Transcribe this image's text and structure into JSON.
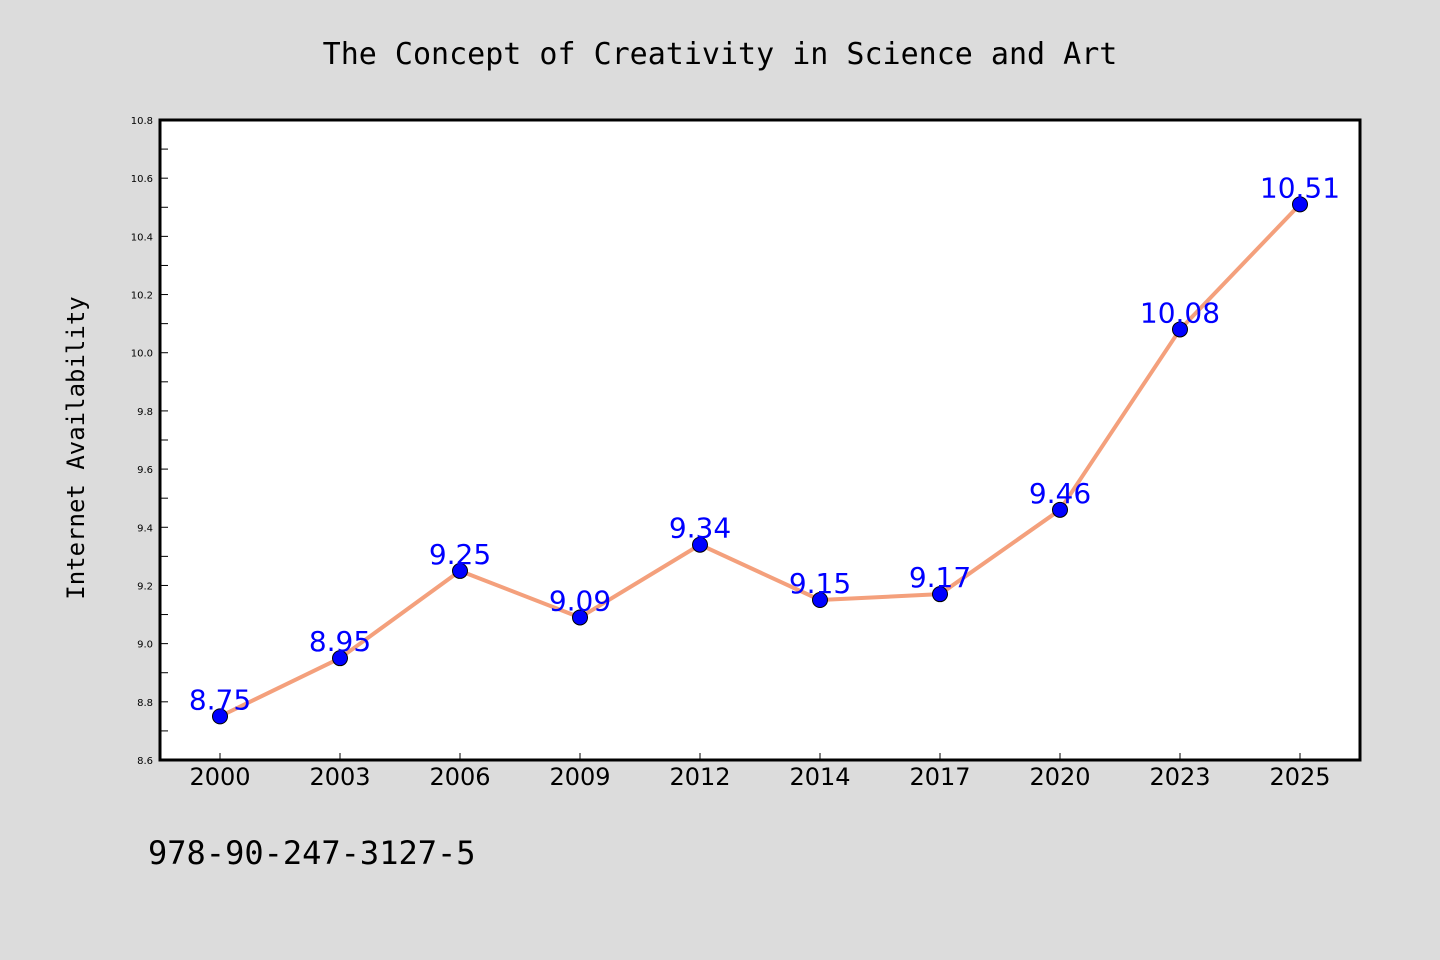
{
  "chart_data": {
    "type": "line",
    "title": "The Concept of Creativity in Science and Art",
    "ylabel": "Internet Availability",
    "xlabel": "",
    "categories": [
      "2000",
      "2003",
      "2006",
      "2009",
      "2012",
      "2014",
      "2017",
      "2020",
      "2023",
      "2025"
    ],
    "series": [
      {
        "values": [
          8.75,
          8.95,
          9.25,
          9.09,
          9.34,
          9.15,
          9.17,
          9.46,
          10.08,
          10.51
        ],
        "labels": [
          "8.75",
          "8.95",
          "9.25",
          "9.09",
          "9.34",
          "9.15",
          "9.17",
          "9.46",
          "10.08",
          "10.51"
        ]
      }
    ],
    "ylim": [
      8.6,
      10.8
    ],
    "yticks": [
      "8.6",
      "8.8",
      "9.0",
      "9.2",
      "9.4",
      "9.6",
      "9.8",
      "10.0",
      "10.2",
      "10.4",
      "10.6",
      "10.8"
    ],
    "grid": false,
    "line_color": "#f4a07c",
    "marker_color": "#0000ff",
    "label_color": "#0000ff",
    "background_color": "#dcdcdc",
    "plot_background_color": "#ffffff"
  },
  "footer": {
    "isbn": "978-90-247-3127-5"
  }
}
